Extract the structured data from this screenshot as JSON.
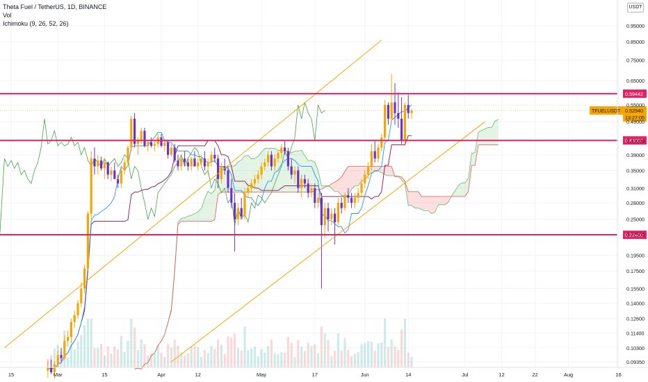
{
  "legend": {
    "symbol": "Theta Fuel / TetherUS, 1D, BINANCE",
    "volume": "Vol",
    "ichimoku": "Ichimoku (9, 26, 52, 26)"
  },
  "currency": "USDT",
  "colors": {
    "up": "#f7a600",
    "down": "#6a33c8",
    "level": "#e91e63",
    "trend": "#f7a600",
    "tenkan": "#2196f3",
    "kijun": "#880e4f",
    "chikou": "#43a047",
    "spanA": "#66bb6a",
    "spanB": "#ef5350",
    "tag": "#f7a600"
  },
  "chart_data": {
    "type": "candlestick",
    "y_scale": "log",
    "x_ticks": [
      {
        "label": "15",
        "date": "2021-02-15"
      },
      {
        "label": "Mar",
        "date": "2021-03-01"
      },
      {
        "label": "15",
        "date": "2021-03-15"
      },
      {
        "label": "Apr",
        "date": "2021-04-01"
      },
      {
        "label": "12",
        "date": "2021-04-12"
      },
      {
        "label": "May",
        "date": "2021-05-01"
      },
      {
        "label": "17",
        "date": "2021-05-17"
      },
      {
        "label": "Jun",
        "date": "2021-06-01"
      },
      {
        "label": "14",
        "date": "2021-06-14"
      },
      {
        "label": "Jul",
        "date": "2021-07-01"
      },
      {
        "label": "12",
        "date": "2021-07-12"
      },
      {
        "label": "22",
        "date": "2021-07-22"
      },
      {
        "label": "Aug",
        "date": "2021-08-01"
      },
      {
        "label": "16",
        "date": "2021-08-16"
      }
    ],
    "y_ticks": [
      "0.95000",
      "0.85000",
      "0.75000",
      "0.65000",
      "0.55000",
      "0.49000",
      "0.43000",
      "0.39000",
      "0.35000",
      "0.31000",
      "0.28000",
      "0.25000",
      "0.22500",
      "0.19500",
      "0.17500",
      "0.15500",
      "0.14000",
      "0.12600",
      "0.11400",
      "0.10300",
      "0.09350"
    ],
    "y_tick_values": [
      0.95,
      0.85,
      0.75,
      0.65,
      0.55,
      0.49,
      0.43,
      0.39,
      0.35,
      0.31,
      0.28,
      0.25,
      0.225,
      0.195,
      0.175,
      0.155,
      0.14,
      0.126,
      0.114,
      0.103,
      0.0935
    ],
    "levels": [
      {
        "label": "0.59442",
        "value": 0.59442
      },
      {
        "label": "0.43057",
        "value": 0.43057
      },
      {
        "label": "0.22460",
        "value": 0.2246
      }
    ],
    "price_tag": {
      "symbol": "TFUELUSDT",
      "price": "0.52940",
      "countdown": "13:27:05",
      "value": 0.5294
    },
    "trendlines": [
      {
        "from": {
          "date": "2021-02-13",
          "price": 0.103
        },
        "to": {
          "date": "2021-06-06",
          "price": 0.86
        }
      },
      {
        "from": {
          "date": "2021-04-04",
          "price": 0.0935
        },
        "to": {
          "date": "2021-07-07",
          "price": 0.49
        }
      }
    ],
    "ohlc": [
      [
        "2021-02-26",
        0.088,
        0.094,
        0.084,
        0.09
      ],
      [
        "2021-02-27",
        0.09,
        0.095,
        0.086,
        0.087
      ],
      [
        "2021-02-28",
        0.087,
        0.094,
        0.083,
        0.092
      ],
      [
        "2021-03-01",
        0.092,
        0.101,
        0.09,
        0.098
      ],
      [
        "2021-03-02",
        0.098,
        0.103,
        0.094,
        0.096
      ],
      [
        "2021-03-03",
        0.096,
        0.112,
        0.095,
        0.108
      ],
      [
        "2021-03-04",
        0.108,
        0.116,
        0.104,
        0.111
      ],
      [
        "2021-03-05",
        0.111,
        0.126,
        0.107,
        0.123
      ],
      [
        "2021-03-06",
        0.123,
        0.133,
        0.118,
        0.129
      ],
      [
        "2021-03-07",
        0.129,
        0.143,
        0.126,
        0.14
      ],
      [
        "2021-03-08",
        0.14,
        0.162,
        0.136,
        0.155
      ],
      [
        "2021-03-09",
        0.155,
        0.183,
        0.15,
        0.178
      ],
      [
        "2021-03-10",
        0.178,
        0.265,
        0.175,
        0.26
      ],
      [
        "2021-03-11",
        0.26,
        0.4,
        0.25,
        0.38
      ],
      [
        "2021-03-12",
        0.38,
        0.41,
        0.34,
        0.36
      ],
      [
        "2021-03-13",
        0.36,
        0.39,
        0.34,
        0.375
      ],
      [
        "2021-03-14",
        0.375,
        0.385,
        0.35,
        0.355
      ],
      [
        "2021-03-15",
        0.355,
        0.38,
        0.33,
        0.37
      ],
      [
        "2021-03-16",
        0.37,
        0.372,
        0.33,
        0.34
      ],
      [
        "2021-03-17",
        0.34,
        0.36,
        0.325,
        0.35
      ],
      [
        "2021-03-18",
        0.35,
        0.37,
        0.33,
        0.33
      ],
      [
        "2021-03-19",
        0.33,
        0.34,
        0.31,
        0.32
      ],
      [
        "2021-03-20",
        0.32,
        0.36,
        0.31,
        0.35
      ],
      [
        "2021-03-21",
        0.35,
        0.38,
        0.34,
        0.37
      ],
      [
        "2021-03-22",
        0.37,
        0.415,
        0.36,
        0.41
      ],
      [
        "2021-03-23",
        0.41,
        0.51,
        0.4,
        0.5
      ],
      [
        "2021-03-24",
        0.5,
        0.52,
        0.41,
        0.42
      ],
      [
        "2021-03-25",
        0.42,
        0.44,
        0.39,
        0.43
      ],
      [
        "2021-03-26",
        0.43,
        0.47,
        0.42,
        0.46
      ],
      [
        "2021-03-27",
        0.46,
        0.47,
        0.41,
        0.415
      ],
      [
        "2021-03-28",
        0.415,
        0.43,
        0.4,
        0.425
      ],
      [
        "2021-03-29",
        0.425,
        0.44,
        0.41,
        0.415
      ],
      [
        "2021-03-30",
        0.415,
        0.43,
        0.4,
        0.42
      ],
      [
        "2021-03-31",
        0.42,
        0.45,
        0.41,
        0.44
      ],
      [
        "2021-04-01",
        0.44,
        0.45,
        0.41,
        0.415
      ],
      [
        "2021-04-02",
        0.415,
        0.43,
        0.4,
        0.425
      ],
      [
        "2021-04-03",
        0.425,
        0.43,
        0.38,
        0.39
      ],
      [
        "2021-04-04",
        0.39,
        0.42,
        0.385,
        0.41
      ],
      [
        "2021-04-05",
        0.41,
        0.42,
        0.37,
        0.375
      ],
      [
        "2021-04-06",
        0.375,
        0.39,
        0.35,
        0.36
      ],
      [
        "2021-04-07",
        0.36,
        0.385,
        0.35,
        0.38
      ],
      [
        "2021-04-08",
        0.38,
        0.4,
        0.36,
        0.37
      ],
      [
        "2021-04-09",
        0.37,
        0.38,
        0.35,
        0.36
      ],
      [
        "2021-04-10",
        0.36,
        0.385,
        0.35,
        0.38
      ],
      [
        "2021-04-11",
        0.38,
        0.4,
        0.36,
        0.36
      ],
      [
        "2021-04-12",
        0.36,
        0.38,
        0.35,
        0.37
      ],
      [
        "2021-04-13",
        0.37,
        0.39,
        0.36,
        0.38
      ],
      [
        "2021-04-14",
        0.38,
        0.4,
        0.35,
        0.36
      ],
      [
        "2021-04-15",
        0.36,
        0.38,
        0.34,
        0.37
      ],
      [
        "2021-04-16",
        0.37,
        0.4,
        0.36,
        0.39
      ],
      [
        "2021-04-17",
        0.39,
        0.41,
        0.37,
        0.38
      ],
      [
        "2021-04-18",
        0.38,
        0.39,
        0.31,
        0.33
      ],
      [
        "2021-04-19",
        0.33,
        0.37,
        0.32,
        0.36
      ],
      [
        "2021-04-20",
        0.36,
        0.38,
        0.34,
        0.35
      ],
      [
        "2021-04-21",
        0.35,
        0.36,
        0.3,
        0.31
      ],
      [
        "2021-04-22",
        0.31,
        0.33,
        0.27,
        0.28
      ],
      [
        "2021-04-23",
        0.28,
        0.3,
        0.2,
        0.25
      ],
      [
        "2021-04-24",
        0.25,
        0.28,
        0.24,
        0.27
      ],
      [
        "2021-04-25",
        0.27,
        0.29,
        0.25,
        0.255
      ],
      [
        "2021-04-26",
        0.255,
        0.31,
        0.25,
        0.3
      ],
      [
        "2021-04-27",
        0.3,
        0.32,
        0.29,
        0.31
      ],
      [
        "2021-04-28",
        0.31,
        0.33,
        0.3,
        0.32
      ],
      [
        "2021-04-29",
        0.32,
        0.34,
        0.31,
        0.33
      ],
      [
        "2021-04-30",
        0.33,
        0.35,
        0.32,
        0.34
      ],
      [
        "2021-05-01",
        0.34,
        0.37,
        0.33,
        0.36
      ],
      [
        "2021-05-02",
        0.36,
        0.38,
        0.35,
        0.37
      ],
      [
        "2021-05-03",
        0.37,
        0.4,
        0.36,
        0.39
      ],
      [
        "2021-05-04",
        0.39,
        0.4,
        0.35,
        0.36
      ],
      [
        "2021-05-05",
        0.36,
        0.39,
        0.35,
        0.38
      ],
      [
        "2021-05-06",
        0.38,
        0.4,
        0.37,
        0.395
      ],
      [
        "2021-05-07",
        0.395,
        0.42,
        0.38,
        0.41
      ],
      [
        "2021-05-08",
        0.41,
        0.43,
        0.39,
        0.4
      ],
      [
        "2021-05-09",
        0.4,
        0.41,
        0.35,
        0.36
      ],
      [
        "2021-05-10",
        0.36,
        0.38,
        0.33,
        0.34
      ],
      [
        "2021-05-11",
        0.34,
        0.36,
        0.32,
        0.35
      ],
      [
        "2021-05-12",
        0.35,
        0.36,
        0.3,
        0.31
      ],
      [
        "2021-05-13",
        0.31,
        0.34,
        0.29,
        0.33
      ],
      [
        "2021-05-14",
        0.33,
        0.34,
        0.31,
        0.32
      ],
      [
        "2021-05-15",
        0.32,
        0.33,
        0.29,
        0.3
      ],
      [
        "2021-05-16",
        0.3,
        0.32,
        0.29,
        0.31
      ],
      [
        "2021-05-17",
        0.31,
        0.32,
        0.27,
        0.28
      ],
      [
        "2021-05-18",
        0.28,
        0.3,
        0.27,
        0.29
      ],
      [
        "2021-05-19",
        0.29,
        0.3,
        0.155,
        0.24
      ],
      [
        "2021-05-20",
        0.24,
        0.28,
        0.22,
        0.27
      ],
      [
        "2021-05-21",
        0.27,
        0.28,
        0.23,
        0.25
      ],
      [
        "2021-05-22",
        0.25,
        0.27,
        0.24,
        0.26
      ],
      [
        "2021-05-23",
        0.26,
        0.27,
        0.21,
        0.245
      ],
      [
        "2021-05-24",
        0.245,
        0.29,
        0.24,
        0.28
      ],
      [
        "2021-05-25",
        0.28,
        0.29,
        0.26,
        0.27
      ],
      [
        "2021-05-26",
        0.27,
        0.3,
        0.265,
        0.295
      ],
      [
        "2021-05-27",
        0.295,
        0.31,
        0.28,
        0.29
      ],
      [
        "2021-05-28",
        0.29,
        0.3,
        0.27,
        0.28
      ],
      [
        "2021-05-29",
        0.28,
        0.3,
        0.27,
        0.29
      ],
      [
        "2021-05-30",
        0.29,
        0.31,
        0.28,
        0.3
      ],
      [
        "2021-05-31",
        0.3,
        0.33,
        0.29,
        0.32
      ],
      [
        "2021-06-01",
        0.32,
        0.35,
        0.31,
        0.34
      ],
      [
        "2021-06-02",
        0.34,
        0.37,
        0.33,
        0.36
      ],
      [
        "2021-06-03",
        0.36,
        0.42,
        0.35,
        0.4
      ],
      [
        "2021-06-04",
        0.4,
        0.43,
        0.37,
        0.38
      ],
      [
        "2021-06-05",
        0.38,
        0.42,
        0.37,
        0.41
      ],
      [
        "2021-06-06",
        0.41,
        0.45,
        0.4,
        0.44
      ],
      [
        "2021-06-07",
        0.44,
        0.57,
        0.43,
        0.55
      ],
      [
        "2021-06-08",
        0.55,
        0.56,
        0.48,
        0.5
      ],
      [
        "2021-06-09",
        0.5,
        0.68,
        0.49,
        0.56
      ],
      [
        "2021-06-10",
        0.56,
        0.64,
        0.48,
        0.52
      ],
      [
        "2021-06-11",
        0.52,
        0.6,
        0.47,
        0.5
      ],
      [
        "2021-06-12",
        0.5,
        0.58,
        0.42,
        0.43
      ],
      [
        "2021-06-13",
        0.43,
        0.56,
        0.42,
        0.55
      ],
      [
        "2021-06-14",
        0.55,
        0.59,
        0.5,
        0.52
      ],
      [
        "2021-06-15",
        0.52,
        0.535,
        0.5,
        0.5294
      ]
    ]
  }
}
